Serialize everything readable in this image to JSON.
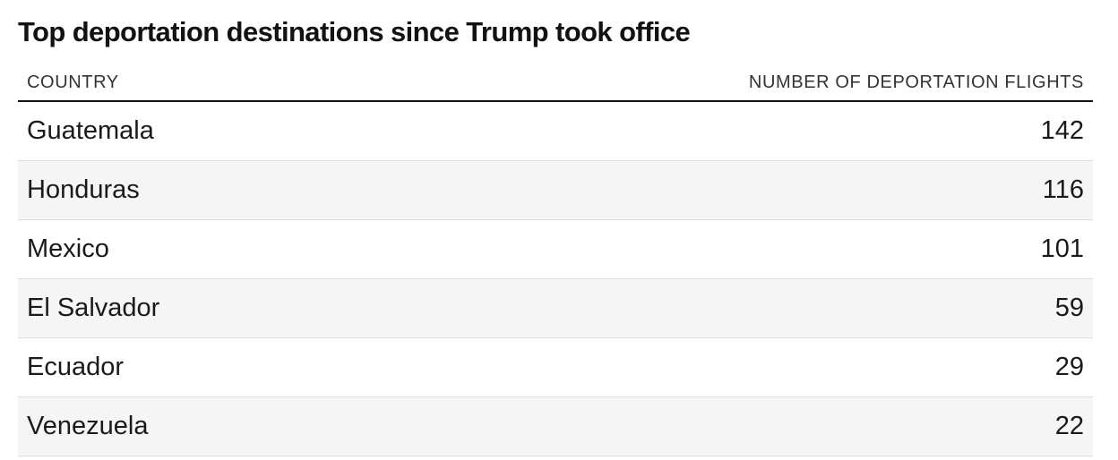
{
  "chart_data": {
    "type": "table",
    "title": "Top deportation destinations since Trump took office",
    "columns": [
      "COUNTRY",
      "NUMBER OF DEPORTATION FLIGHTS"
    ],
    "rows": [
      {
        "country": "Guatemala",
        "flights": 142
      },
      {
        "country": "Honduras",
        "flights": 116
      },
      {
        "country": "Mexico",
        "flights": 101
      },
      {
        "country": "El Salvador",
        "flights": 59
      },
      {
        "country": "Ecuador",
        "flights": 29
      },
      {
        "country": "Venezuela",
        "flights": 22
      }
    ]
  }
}
